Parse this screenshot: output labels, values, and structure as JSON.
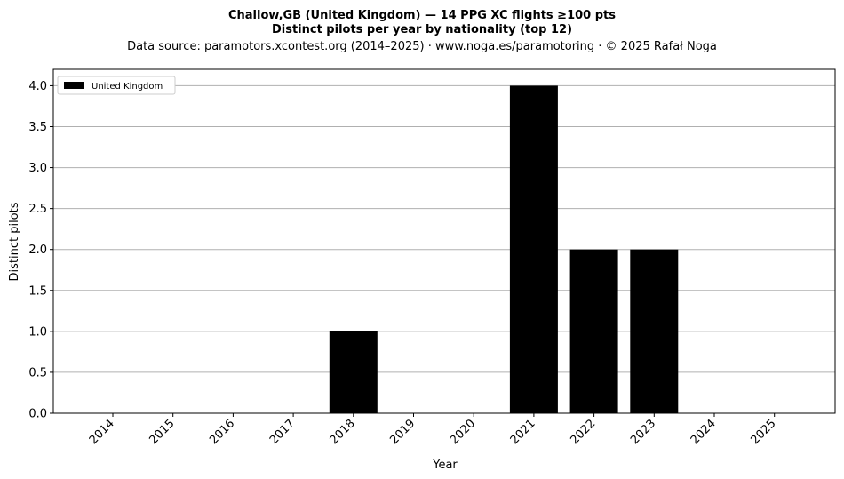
{
  "chart_data": {
    "type": "bar",
    "title_line1": "Challow,GB (United Kingdom)  —  14 PPG XC flights ≥100 pts",
    "title_line2": "Distinct pilots per year by nationality (top 12)",
    "subtitle": "Data source: paramotors.xcontest.org (2014–2025)  ·  www.noga.es/paramotoring  ·  © 2025 Rafał Noga",
    "xlabel": "Year",
    "ylabel": "Distinct pilots",
    "categories": [
      "2014",
      "2015",
      "2016",
      "2017",
      "2018",
      "2019",
      "2020",
      "2021",
      "2022",
      "2023",
      "2024",
      "2025"
    ],
    "series": [
      {
        "name": "United Kingdom",
        "values": [
          0,
          0,
          0,
          0,
          1,
          0,
          0,
          4,
          2,
          2,
          0,
          0
        ],
        "color": "#000000"
      }
    ],
    "ylim": [
      0,
      4.2
    ],
    "yticks": [
      "0.0",
      "0.5",
      "1.0",
      "1.5",
      "2.0",
      "2.5",
      "3.0",
      "3.5",
      "4.0"
    ],
    "grid": "y",
    "legend_position": "top-left"
  }
}
